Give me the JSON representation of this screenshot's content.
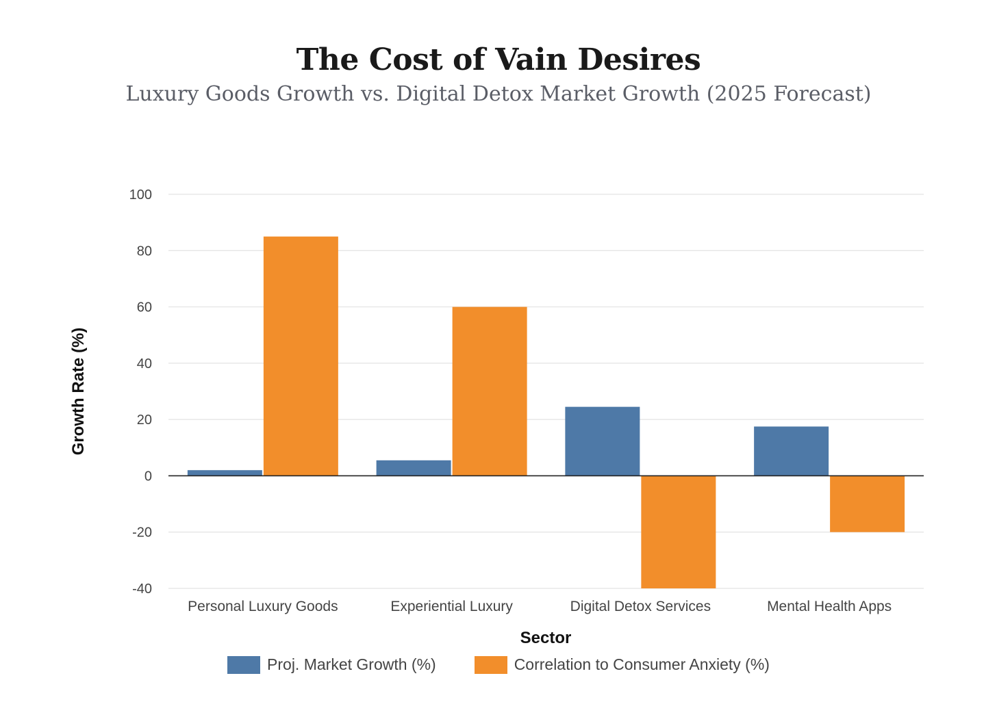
{
  "chart_data": {
    "type": "bar",
    "title": "The Cost of Vain Desires",
    "subtitle": "Luxury Goods Growth vs. Digital Detox Market Growth (2025 Forecast)",
    "xlabel": "Sector",
    "ylabel": "Growth Rate (%)",
    "categories": [
      "Personal Luxury Goods",
      "Experiential Luxury",
      "Digital Detox Services",
      "Mental Health Apps"
    ],
    "series": [
      {
        "name": "Proj. Market Growth (%)",
        "values": [
          2,
          5.5,
          24.5,
          17.5
        ],
        "color": "#4e79a7"
      },
      {
        "name": "Correlation to Consumer Anxiety (%)",
        "values": [
          85,
          60,
          -40,
          -20
        ],
        "color": "#f28e2b"
      }
    ],
    "ylim": [
      -40,
      100
    ],
    "yticks": [
      100,
      80,
      60,
      40,
      20,
      0,
      -20,
      -40
    ],
    "grid": true,
    "legend_position": "bottom"
  }
}
